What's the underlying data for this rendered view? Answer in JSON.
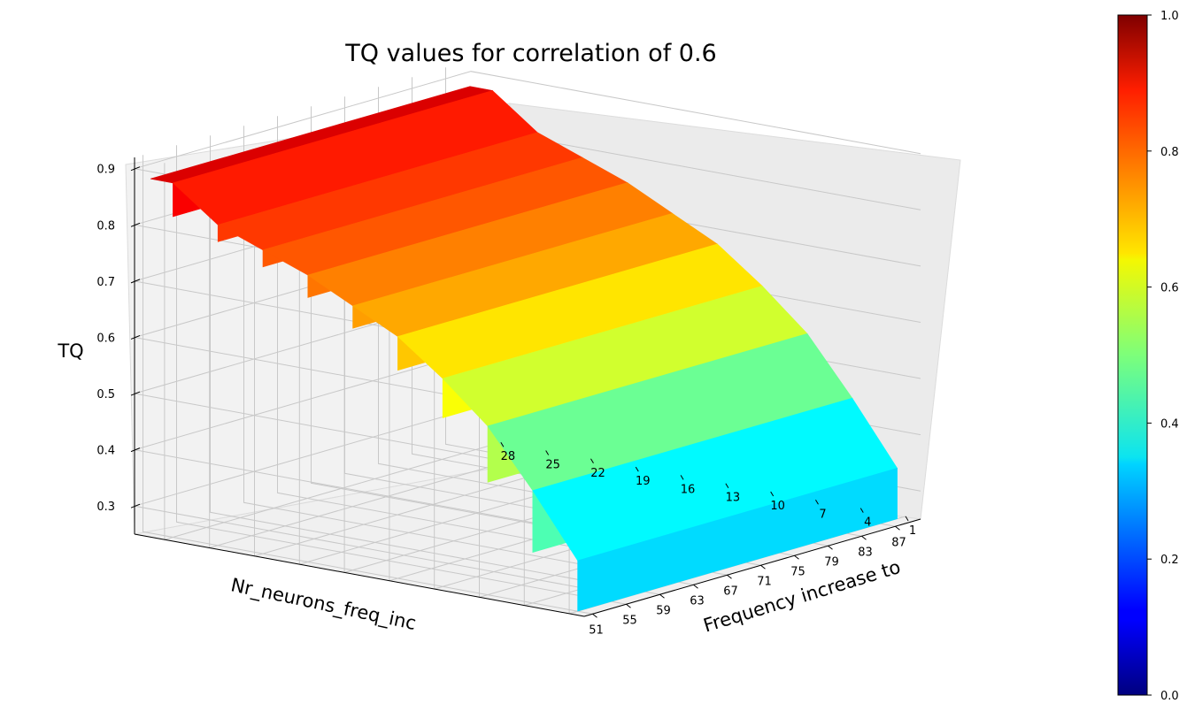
{
  "chart_data": {
    "type": "surface3d",
    "title": "TQ values for correlation of 0.6",
    "xlabel": "Frequency increase to",
    "ylabel": "Nr_neurons_freq_inc",
    "zlabel": "TQ",
    "x_ticks": [
      51,
      55,
      59,
      63,
      67,
      71,
      75,
      79,
      83,
      87
    ],
    "y_ticks": [
      1,
      4,
      7,
      10,
      13,
      16,
      19,
      22,
      25,
      28
    ],
    "z_ticks": [
      0.3,
      0.4,
      0.5,
      0.6,
      0.7,
      0.8,
      0.9
    ],
    "xlim": [
      50,
      90
    ],
    "ylim": [
      0,
      30
    ],
    "zlim": [
      0.25,
      0.92
    ],
    "colormap": "jet",
    "colorbar": {
      "min": 0.0,
      "max": 1.0,
      "ticks": [
        "0.0",
        "0.2",
        "0.4",
        "0.6",
        "0.8",
        "1.0"
      ]
    },
    "grid": true,
    "rows": [
      {
        "nr_neurons": 1,
        "tq": 0.34
      },
      {
        "nr_neurons": 4,
        "tq": 0.45
      },
      {
        "nr_neurons": 7,
        "tq": 0.55
      },
      {
        "nr_neurons": 10,
        "tq": 0.62
      },
      {
        "nr_neurons": 13,
        "tq": 0.68
      },
      {
        "nr_neurons": 16,
        "tq": 0.72
      },
      {
        "nr_neurons": 19,
        "tq": 0.76
      },
      {
        "nr_neurons": 22,
        "tq": 0.79
      },
      {
        "nr_neurons": 25,
        "tq": 0.82
      },
      {
        "nr_neurons": 28,
        "tq": 0.88
      }
    ]
  }
}
